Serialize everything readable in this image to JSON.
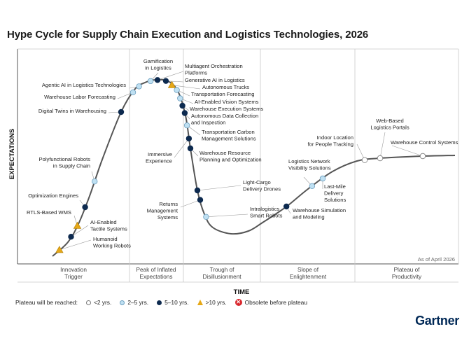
{
  "chart_data": {
    "type": "scatter",
    "title": "Hype Cycle for Supply Chain Execution and Logistics Technologies, 2026",
    "ylabel": "EXPECTATIONS",
    "xlabel": "TIME",
    "as_of": "As of April 2026",
    "phases": [
      "Innovation\nTrigger",
      "Peak of Inflated\nExpectations",
      "Trough of\nDisillusionment",
      "Slope of\nEnlightenment",
      "Plateau of\nProductivity"
    ],
    "colors": {
      "lt2": "#ffffff",
      "y2to5": "#bfe0f2",
      "y5to10": "#0d2a4f",
      "gt10": "#e6a817",
      "obsolete": "#d9262c",
      "curve": "#555555"
    },
    "points": [
      {
        "label": "Humanoid\nWorking Robots",
        "t": 0.9,
        "plateau": "gt10"
      },
      {
        "label": "AI-Enabled\nTactile Systems",
        "t": 2.6,
        "plateau": "y5to10"
      },
      {
        "label": "RTLS-Based WMS",
        "t": 3.8,
        "plateau": "gt10"
      },
      {
        "label": "Optimization Engines",
        "t": 5.2,
        "plateau": "y5to10"
      },
      {
        "label": "Polyfunctional Robots\nin Supply Chain",
        "t": 6.8,
        "plateau": "y2to5"
      },
      {
        "label": "Digital Twins in Warehousing",
        "t": 10.0,
        "plateau": "y5to10"
      },
      {
        "label": "Warehouse Labor Forecasting",
        "t": 11.7,
        "plateau": "y2to5"
      },
      {
        "label": "Agentic AI in Logistics Technologies",
        "t": 12.6,
        "plateau": "y2to5"
      },
      {
        "label": "Gamification\nin Logistics",
        "t": 14.2,
        "plateau": "y2to5"
      },
      {
        "label": "Multiagent Orchestration\nPlatforms",
        "t": 15.0,
        "plateau": "y5to10"
      },
      {
        "label": "Generative AI in Logistics",
        "t": 15.8,
        "plateau": "y5to10"
      },
      {
        "label": "Autonomous Trucks",
        "t": 16.4,
        "plateau": "gt10"
      },
      {
        "label": "Transportation Forecasting",
        "t": 16.9,
        "plateau": "y2to5"
      },
      {
        "label": "AI-Enabled Vision Systems",
        "t": 17.3,
        "plateau": "y2to5"
      },
      {
        "label": "Warehouse Execution Systems",
        "t": 17.6,
        "plateau": "y5to10"
      },
      {
        "label": "Autonomous Data Collection\nand Inspection",
        "t": 17.9,
        "plateau": "y5to10"
      },
      {
        "label": "Transportation Carbon\nManagement Solutions",
        "t": 18.3,
        "plateau": "y2to5"
      },
      {
        "label": "Immersive\nExperience",
        "t": 18.7,
        "plateau": "y5to10"
      },
      {
        "label": "Warehouse Resource\nPlanning and Optimization",
        "t": 19.0,
        "plateau": "y5to10"
      },
      {
        "label": "Light-Cargo\nDelivery Drones",
        "t": 20.0,
        "plateau": "y5to10"
      },
      {
        "label": "Returns\nManagement\nSystems",
        "t": 20.4,
        "plateau": "y5to10"
      },
      {
        "label": "Intralogistics\nSmart Robots",
        "t": 21.2,
        "plateau": "y2to5"
      },
      {
        "label": "Warehouse Simulation\nand Modeling",
        "t": 35.5,
        "plateau": "y5to10"
      },
      {
        "label": "Logistics Network\nVisibility Solutions",
        "t": 39.5,
        "plateau": "y2to5"
      },
      {
        "label": "Last-Mile\nDelivery\nSolutions",
        "t": 40.8,
        "plateau": "y2to5"
      },
      {
        "label": "Indoor Location\nfor People Tracking",
        "t": 46.0,
        "plateau": "lt2"
      },
      {
        "label": "Web-Based\nLogistics Portals",
        "t": 48.0,
        "plateau": "lt2"
      },
      {
        "label": "Warehouse Control Systems",
        "t": 53.0,
        "plateau": "lt2"
      }
    ],
    "grid": false,
    "legend_placement": "bottom-left"
  },
  "legend": {
    "title": "Plateau will be reached:",
    "items": [
      {
        "key": "lt2",
        "label": "<2 yrs."
      },
      {
        "key": "y2to5",
        "label": "2–5 yrs."
      },
      {
        "key": "y5to10",
        "label": "5–10 yrs."
      },
      {
        "key": "gt10",
        "label": ">10 yrs."
      },
      {
        "key": "obsolete",
        "label": "Obsolete before plateau"
      }
    ]
  },
  "brand": "Gartner"
}
